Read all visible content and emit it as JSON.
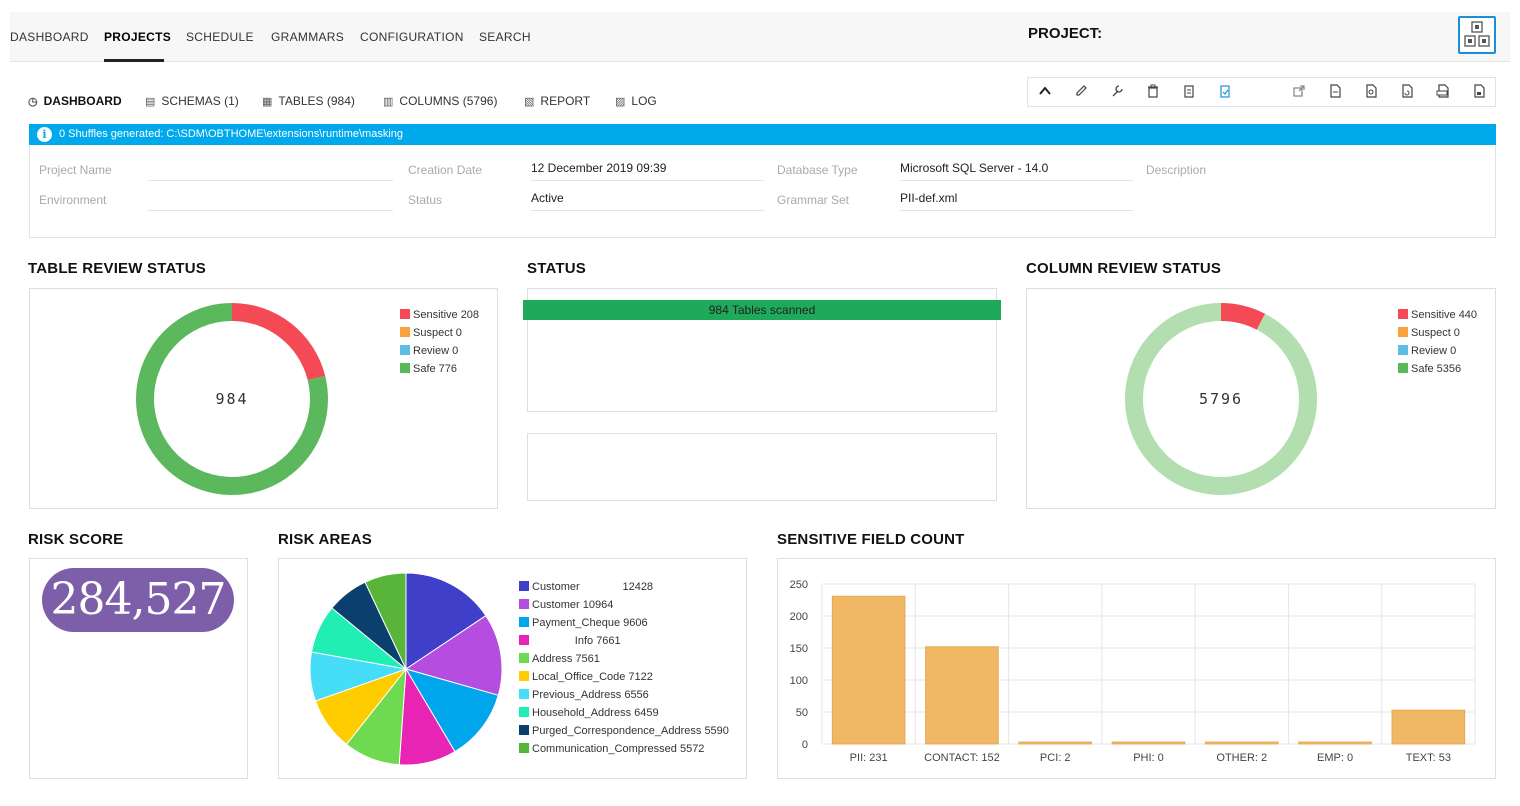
{
  "topnav": {
    "items": [
      "DASHBOARD",
      "PROJECTS",
      "SCHEDULE",
      "GRAMMARS",
      "CONFIGURATION",
      "SEARCH"
    ],
    "active": "PROJECTS",
    "project_label": "PROJECT:"
  },
  "subtabs": [
    {
      "label": "DASHBOARD",
      "icon": "dashboard-icon"
    },
    {
      "label": "SCHEMAS (1)",
      "icon": "schema-icon"
    },
    {
      "label": "TABLES (984)",
      "icon": "table-icon"
    },
    {
      "label": "COLUMNS (5796)",
      "icon": "columns-icon"
    },
    {
      "label": "REPORT",
      "icon": "report-icon"
    },
    {
      "label": "LOG",
      "icon": "log-icon"
    }
  ],
  "toolbar_icons": [
    "collapse-icon",
    "edit-icon",
    "wrench-icon",
    "delete-icon",
    "clipboard-icon",
    "clipboard-check-icon",
    "export-icon",
    "doc-icon",
    "doc-search-icon",
    "doc-refresh-icon",
    "doc-print-icon",
    "doc-lock-icon"
  ],
  "info": {
    "message": "0 Shuffles generated: C:\\SDM\\OBTHOME\\extensions\\runtime\\masking"
  },
  "properties": {
    "project_name_label": "Project Name",
    "project_name_value": "",
    "environment_label": "Environment",
    "environment_value": "",
    "creation_date_label": "Creation Date",
    "creation_date_value": "12 December 2019 09:39",
    "status_label": "Status",
    "status_value": "Active",
    "database_type_label": "Database Type",
    "database_type_value": "Microsoft SQL Server - 14.0",
    "grammar_set_label": "Grammar Set",
    "grammar_set_value": "PII-def.xml",
    "description_label": "Description"
  },
  "sections": {
    "table_review": "TABLE REVIEW STATUS",
    "status": "STATUS",
    "column_review": "COLUMN REVIEW STATUS",
    "risk_score": "RISK SCORE",
    "risk_areas": "RISK AREAS",
    "sensitive_field_count": "SENSITIVE FIELD COUNT"
  },
  "status_panel": {
    "bar_text": "984 Tables scanned",
    "progress": 1.0
  },
  "risk_score": "284,527",
  "colors": {
    "sensitive": "#f44a55",
    "suspect": "#f9a13a",
    "review": "#5bbde8",
    "safe": "#5cb85c",
    "safe_light": "#b2deb0",
    "bar": "#f0b865",
    "info_blue": "#00a8ec",
    "status_green": "#1eaa5a",
    "risk_purple": "#7c5fa8"
  },
  "chart_data": [
    {
      "type": "pie",
      "title": "TABLE REVIEW STATUS",
      "center_label": "984",
      "categories": [
        "Sensitive",
        "Suspect",
        "Review",
        "Safe"
      ],
      "values": [
        208,
        0,
        0,
        776
      ],
      "legend": [
        "Sensitive 208",
        "Suspect 0",
        "Review 0",
        "Safe 776"
      ],
      "colors": [
        "#f44a55",
        "#f9a13a",
        "#5bbde8",
        "#5cb85c"
      ],
      "legend_position": "right"
    },
    {
      "type": "pie",
      "title": "COLUMN REVIEW STATUS",
      "center_label": "5796",
      "categories": [
        "Sensitive",
        "Suspect",
        "Review",
        "Safe"
      ],
      "values": [
        440,
        0,
        0,
        5356
      ],
      "legend": [
        "Sensitive 440",
        "Suspect 0",
        "Review 0",
        "Safe 5356"
      ],
      "colors": [
        "#f44a55",
        "#f9a13a",
        "#5bbde8",
        "#b2deb0"
      ],
      "legend_colors": [
        "#f44a55",
        "#f9a13a",
        "#5bbde8",
        "#5cb85c"
      ],
      "legend_position": "right"
    },
    {
      "type": "pie",
      "title": "RISK AREAS",
      "categories": [
        "Customer",
        "Customer",
        "Payment_Cheque",
        "Info",
        "Address",
        "Local_Office_Code",
        "Previous_Address",
        "Household_Address",
        "Purged_Correspondence_Address",
        "Communication_Compressed"
      ],
      "values": [
        12428,
        10964,
        9606,
        7661,
        7561,
        7122,
        6556,
        6459,
        5590,
        5572
      ],
      "legend": [
        "Customer              12428",
        "Customer 10964",
        "Payment_Cheque 9606",
        "              Info 7661",
        "Address 7561",
        "Local_Office_Code 7122",
        "Previous_Address 6556",
        "Household_Address 6459",
        "Purged_Correspondence_Address 5590",
        "Communication_Compressed 5572"
      ],
      "colors": [
        "#3f3fc9",
        "#b44de0",
        "#00a6ec",
        "#e824b4",
        "#6fd94f",
        "#ffcc00",
        "#46ddf7",
        "#20eeb4",
        "#0a3f6e",
        "#58b53a"
      ],
      "legend_position": "right"
    },
    {
      "type": "bar",
      "title": "SENSITIVE FIELD COUNT",
      "categories": [
        "PII: 231",
        "CONTACT: 152",
        "PCI: 2",
        "PHI: 0",
        "OTHER: 2",
        "EMP: 0",
        "TEXT: 53"
      ],
      "values": [
        231,
        152,
        2,
        0,
        2,
        0,
        53
      ],
      "ylim": [
        0,
        250
      ],
      "yticks": [
        "0",
        "50",
        "100",
        "150",
        "200",
        "250"
      ],
      "grid": true
    }
  ]
}
